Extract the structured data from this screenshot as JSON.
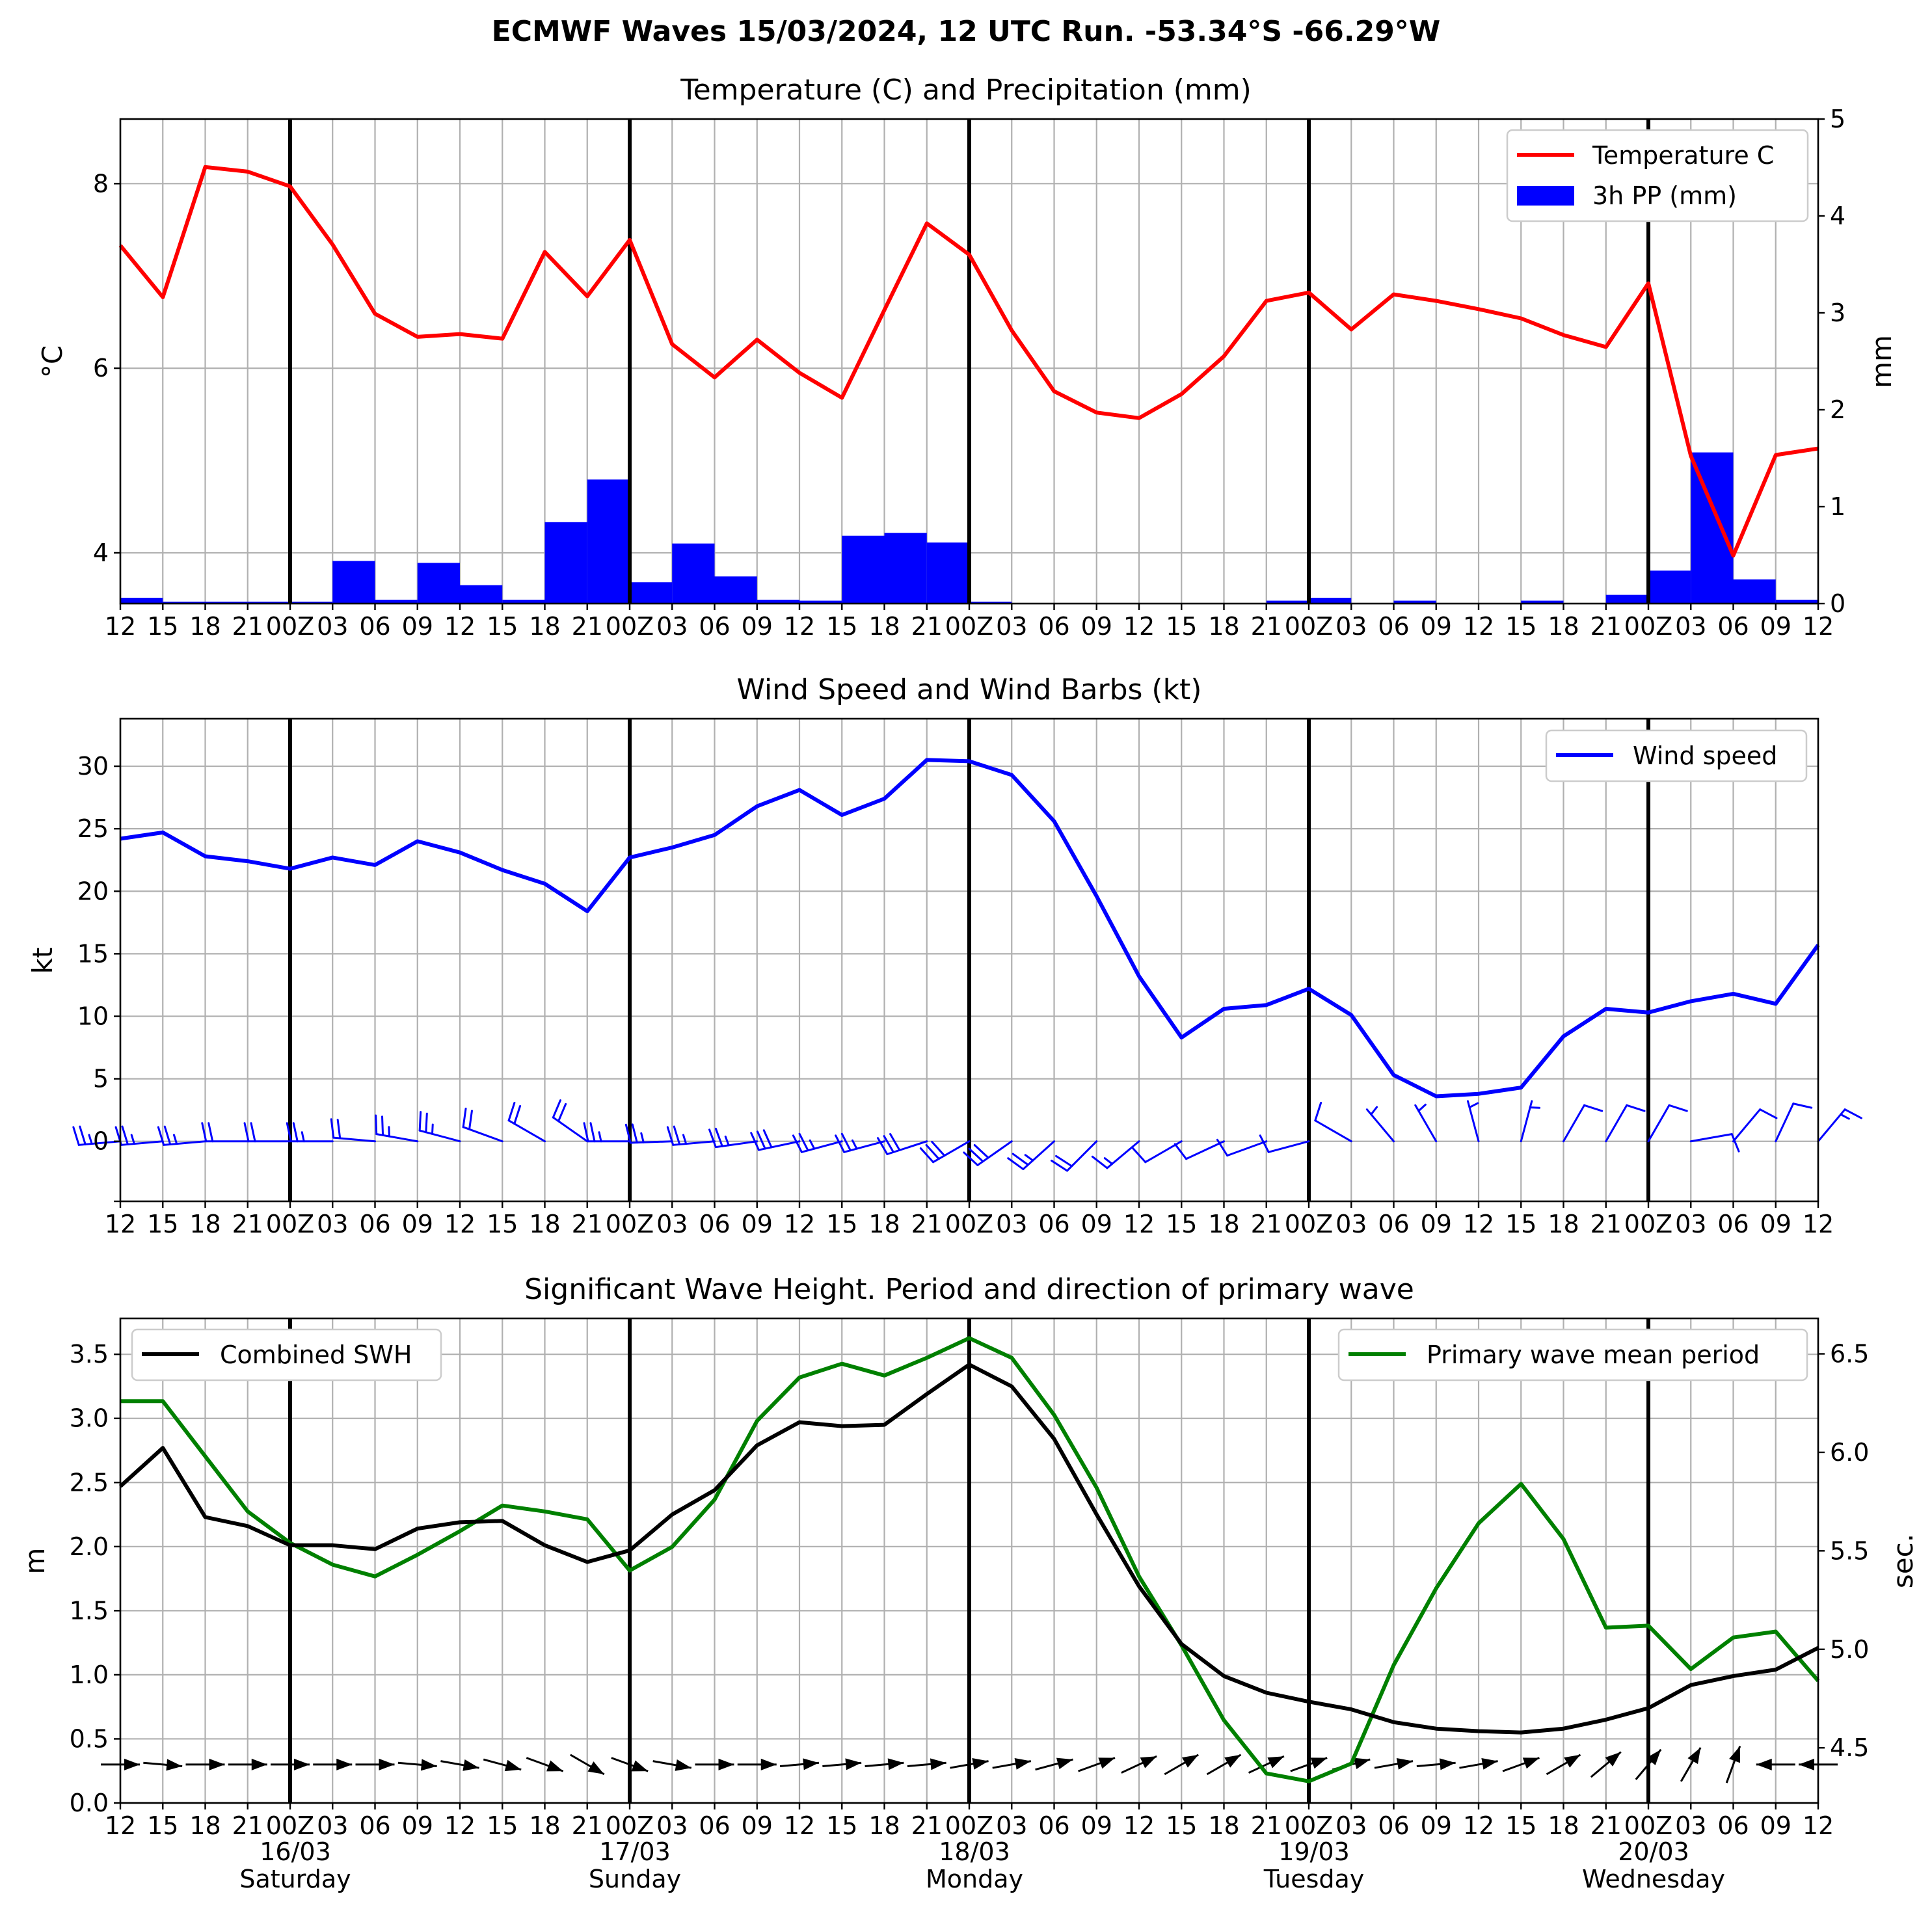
{
  "figure_title": "ECMWF Waves 15/03/2024, 12 UTC Run. -53.34°S -66.29°W",
  "time_tick_labels": [
    "12",
    "15",
    "18",
    "21",
    "00Z",
    "03",
    "06",
    "09",
    "12",
    "15",
    "18",
    "21",
    "00Z",
    "03",
    "06",
    "09",
    "12",
    "15",
    "18",
    "21",
    "00Z",
    "03",
    "06",
    "09",
    "12",
    "15",
    "18",
    "21",
    "00Z",
    "03",
    "06",
    "09",
    "12",
    "15",
    "18",
    "21",
    "00Z",
    "03",
    "06",
    "09",
    "12"
  ],
  "day_labels": [
    {
      "date": "16/03",
      "weekday": "Saturday"
    },
    {
      "date": "17/03",
      "weekday": "Sunday"
    },
    {
      "date": "18/03",
      "weekday": "Monday"
    },
    {
      "date": "19/03",
      "weekday": "Tuesday"
    },
    {
      "date": "20/03",
      "weekday": "Wednesday"
    }
  ],
  "colors": {
    "temperature": "#ff0000",
    "precip": "#0000ff",
    "wind": "#0000ff",
    "swh": "#000000",
    "period": "#008000",
    "barb": "#0000ff",
    "arrow": "#000000"
  },
  "chart_data": [
    {
      "type": "line",
      "title": "Temperature (C) and Precipitation (mm)",
      "ylabel": "$^\\circ$C",
      "ylabel_right": "mm",
      "ylim": [
        3.45,
        8.7
      ],
      "ylim_right": [
        0,
        5
      ],
      "yticks": [
        4,
        6,
        8
      ],
      "yticks_right": [
        0,
        1,
        2,
        3,
        4,
        5
      ],
      "legend_position": "top-right",
      "grid": true,
      "series": [
        {
          "name": "Temperature C",
          "axis": "left",
          "kind": "line",
          "values": [
            7.33,
            6.77,
            8.18,
            8.13,
            7.97,
            7.34,
            6.59,
            6.34,
            6.37,
            6.32,
            7.26,
            6.78,
            7.39,
            6.26,
            5.9,
            6.31,
            5.95,
            5.68,
            6.63,
            7.57,
            7.23,
            6.41,
            5.75,
            5.52,
            5.46,
            5.72,
            6.13,
            6.73,
            6.82,
            6.42,
            6.8,
            6.73,
            6.64,
            6.54,
            6.36,
            6.23,
            6.92,
            5.05,
            3.97,
            5.06,
            5.13
          ]
        },
        {
          "name": "3h PP (mm)",
          "axis": "right",
          "kind": "bar",
          "values": [
            0.06,
            0.02,
            0.02,
            0.02,
            0.02,
            0.44,
            0.04,
            0.42,
            0.19,
            0.04,
            0.84,
            1.28,
            0.22,
            0.62,
            0.28,
            0.04,
            0.03,
            0.7,
            0.73,
            0.63,
            0.02,
            0,
            0,
            0,
            0,
            0,
            0,
            0.03,
            0.06,
            0,
            0.03,
            0,
            0,
            0.03,
            0,
            0.09,
            0.34,
            1.56,
            0.25,
            0.04
          ]
        }
      ]
    },
    {
      "type": "line",
      "title": "Wind Speed and Wind Barbs (kt)",
      "ylabel": "kt",
      "ylim": [
        -4.8,
        33.8
      ],
      "yticks": [
        0,
        5,
        10,
        15,
        20,
        25,
        30
      ],
      "legend_position": "top-right",
      "grid": true,
      "series": [
        {
          "name": "Wind speed",
          "values": [
            24.2,
            24.7,
            22.8,
            22.4,
            21.8,
            22.7,
            22.1,
            24.0,
            23.1,
            21.7,
            20.6,
            18.4,
            22.7,
            23.5,
            24.5,
            26.8,
            28.1,
            26.1,
            27.4,
            30.5,
            30.4,
            29.3,
            25.6,
            19.6,
            13.2,
            8.3,
            10.6,
            10.9,
            12.2,
            10.1,
            5.3,
            3.6,
            3.8,
            4.3,
            8.4,
            10.6,
            10.3,
            11.2,
            11.8,
            11.0,
            15.7
          ]
        }
      ],
      "wind_barbs": {
        "speed_kt": [
          24,
          25,
          23,
          22,
          22,
          23,
          22,
          24,
          23,
          22,
          21,
          18,
          23,
          24,
          25,
          27,
          28,
          26,
          27,
          31,
          30,
          29,
          26,
          20,
          13,
          8,
          11,
          11,
          12,
          10,
          5,
          4,
          4,
          4,
          8,
          11,
          10,
          11,
          12,
          11,
          16
        ],
        "direction_deg": [
          265,
          265,
          265,
          270,
          270,
          270,
          275,
          280,
          285,
          290,
          300,
          305,
          270,
          268,
          265,
          262,
          258,
          255,
          255,
          252,
          240,
          235,
          228,
          225,
          230,
          240,
          245,
          250,
          255,
          300,
          320,
          330,
          345,
          15,
          30,
          30,
          30,
          80,
          40,
          25,
          40
        ]
      }
    },
    {
      "type": "line",
      "title": "Significant Wave Height. Period and direction of primary wave",
      "ylabel": "m",
      "ylabel_right": "sec.",
      "ylim": [
        0,
        3.78
      ],
      "ylim_right": [
        4.22,
        6.68
      ],
      "yticks": [
        0.0,
        0.5,
        1.0,
        1.5,
        2.0,
        2.5,
        3.0,
        3.5
      ],
      "yticks_right": [
        4.5,
        5.0,
        5.5,
        6.0,
        6.5
      ],
      "grid": true,
      "series": [
        {
          "name": "Combined SWH",
          "axis": "left",
          "legend_position": "top-left",
          "values": [
            2.47,
            2.77,
            2.23,
            2.16,
            2.01,
            2.01,
            1.98,
            2.14,
            2.19,
            2.2,
            2.01,
            1.88,
            1.97,
            2.25,
            2.44,
            2.79,
            2.97,
            2.94,
            2.95,
            3.19,
            3.42,
            3.25,
            2.84,
            2.25,
            1.69,
            1.24,
            0.99,
            0.86,
            0.79,
            0.73,
            0.63,
            0.58,
            0.56,
            0.55,
            0.58,
            0.65,
            0.74,
            0.92,
            0.99,
            1.04,
            1.21
          ]
        },
        {
          "name": "Primary wave mean period",
          "axis": "right",
          "legend_position": "top-right",
          "values": [
            6.26,
            6.26,
            5.98,
            5.7,
            5.54,
            5.43,
            5.37,
            5.48,
            5.6,
            5.73,
            5.7,
            5.66,
            5.4,
            5.52,
            5.76,
            6.16,
            6.38,
            6.45,
            6.39,
            6.48,
            6.58,
            6.48,
            6.19,
            5.82,
            5.37,
            5.02,
            4.64,
            4.37,
            4.33,
            4.42,
            4.92,
            5.31,
            5.64,
            5.84,
            5.56,
            5.11,
            5.12,
            4.9,
            5.06,
            5.09,
            4.84
          ]
        }
      ],
      "wave_direction_deg": [
        270,
        275,
        270,
        270,
        270,
        270,
        270,
        275,
        280,
        285,
        290,
        300,
        290,
        280,
        270,
        270,
        265,
        265,
        265,
        265,
        260,
        260,
        255,
        250,
        245,
        240,
        240,
        245,
        250,
        255,
        260,
        265,
        260,
        250,
        240,
        230,
        220,
        210,
        200,
        90,
        90
      ]
    }
  ]
}
